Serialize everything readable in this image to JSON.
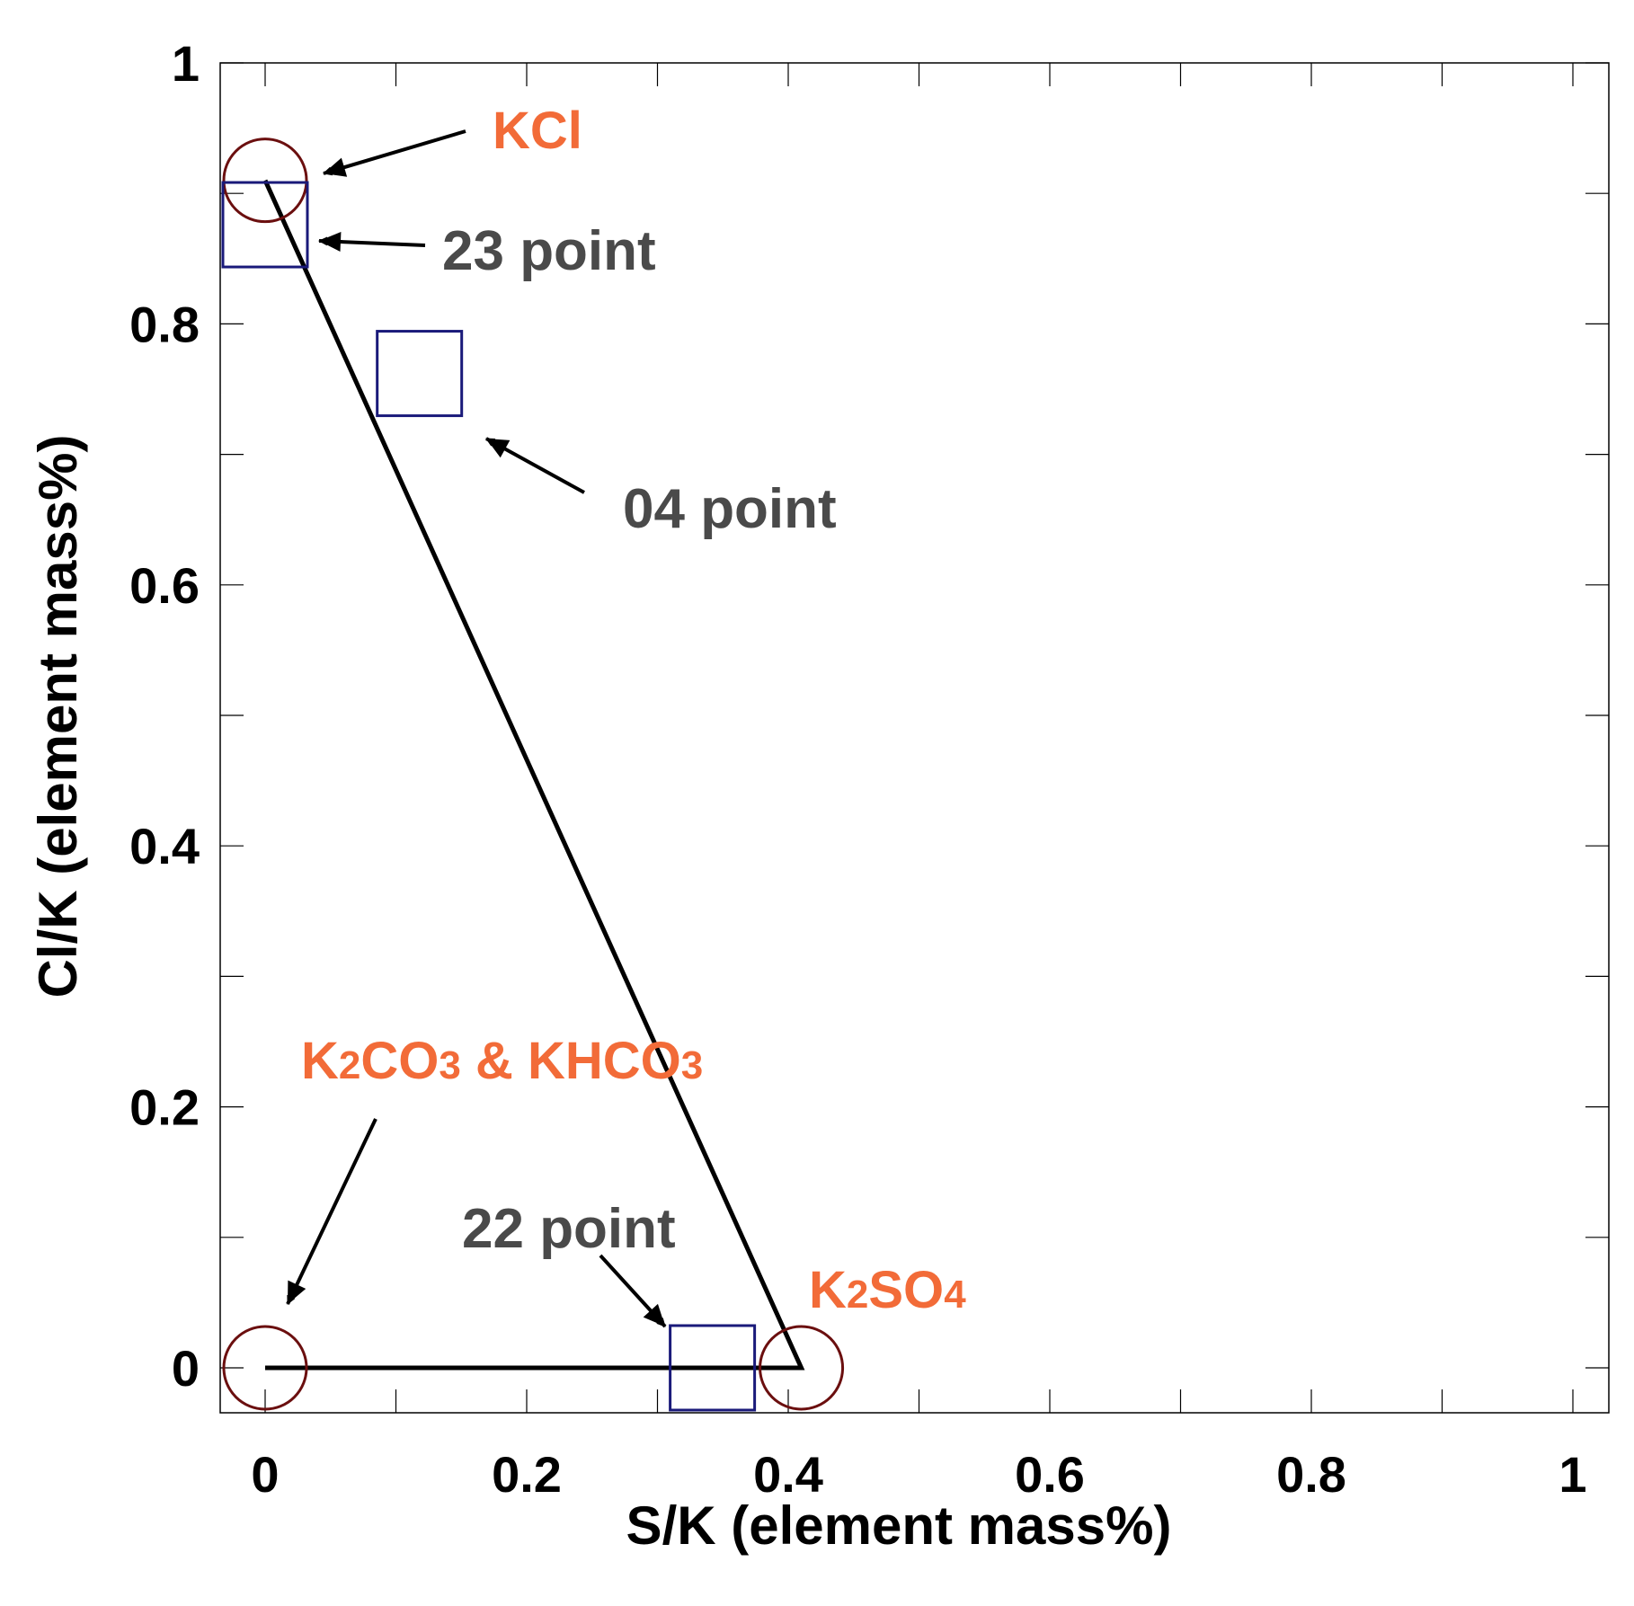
{
  "chart_data": {
    "type": "scatter",
    "xlabel": "S/K (element mass%)",
    "ylabel": "Cl/K (element mass%)",
    "xlim": [
      -0.03,
      1.02
    ],
    "ylim": [
      -0.03,
      1.02
    ],
    "x_ticks": [
      {
        "value": 0,
        "label": "0"
      },
      {
        "value": 0.2,
        "label": "0.2"
      },
      {
        "value": 0.4,
        "label": "0.4"
      },
      {
        "value": 0.6,
        "label": "0.6"
      },
      {
        "value": 0.8,
        "label": "0.8"
      },
      {
        "value": 1,
        "label": "1"
      }
    ],
    "y_ticks": [
      {
        "value": 0,
        "label": "0"
      },
      {
        "value": 0.2,
        "label": "0.2"
      },
      {
        "value": 0.4,
        "label": "0.4"
      },
      {
        "value": 0.6,
        "label": "0.6"
      },
      {
        "value": 0.8,
        "label": "0.8"
      },
      {
        "value": 1,
        "label": "1"
      }
    ],
    "x_minor_ticks": [
      0.1,
      0.3,
      0.5,
      0.7,
      0.9
    ],
    "y_minor_ticks": [
      0.1,
      0.3,
      0.5,
      0.7,
      0.9
    ],
    "reference_compounds": [
      {
        "name": "KCl",
        "x": 0.0,
        "y": 0.91
      },
      {
        "name": "K2CO3 & KHCO3",
        "x": 0.0,
        "y": 0.0
      },
      {
        "name": "K2SO4",
        "x": 0.41,
        "y": 0.0
      }
    ],
    "triangle": [
      [
        0.0,
        0.91
      ],
      [
        0.41,
        0.0
      ],
      [
        0.0,
        0.0
      ]
    ],
    "measured_points": [
      {
        "name": "23 point",
        "x": 0.0,
        "y": 0.876
      },
      {
        "name": "04 point",
        "x": 0.118,
        "y": 0.762
      },
      {
        "name": "22 point",
        "x": 0.342,
        "y": 0.0
      }
    ],
    "annotations": [
      {
        "text": "KCl",
        "color": "#f26b38"
      },
      {
        "text": "23 point",
        "color": "#4a4a4a"
      },
      {
        "text": "04 point",
        "color": "#4a4a4a"
      },
      {
        "text": "K",
        "sub": "2",
        "text2": "CO",
        "sub2": "3",
        "text3": " & KHCO",
        "sub3": "3",
        "color": "#f26b38"
      },
      {
        "text": "22 point",
        "color": "#4a4a4a"
      },
      {
        "text": "K",
        "sub": "2",
        "text2": "SO",
        "sub2": "4",
        "color": "#f26b38"
      }
    ],
    "colors": {
      "circle": "#6b0f0f",
      "square": "#1a1a7a",
      "line": "#000000",
      "orange": "#f26b38",
      "gray": "#4a4a4a"
    }
  }
}
